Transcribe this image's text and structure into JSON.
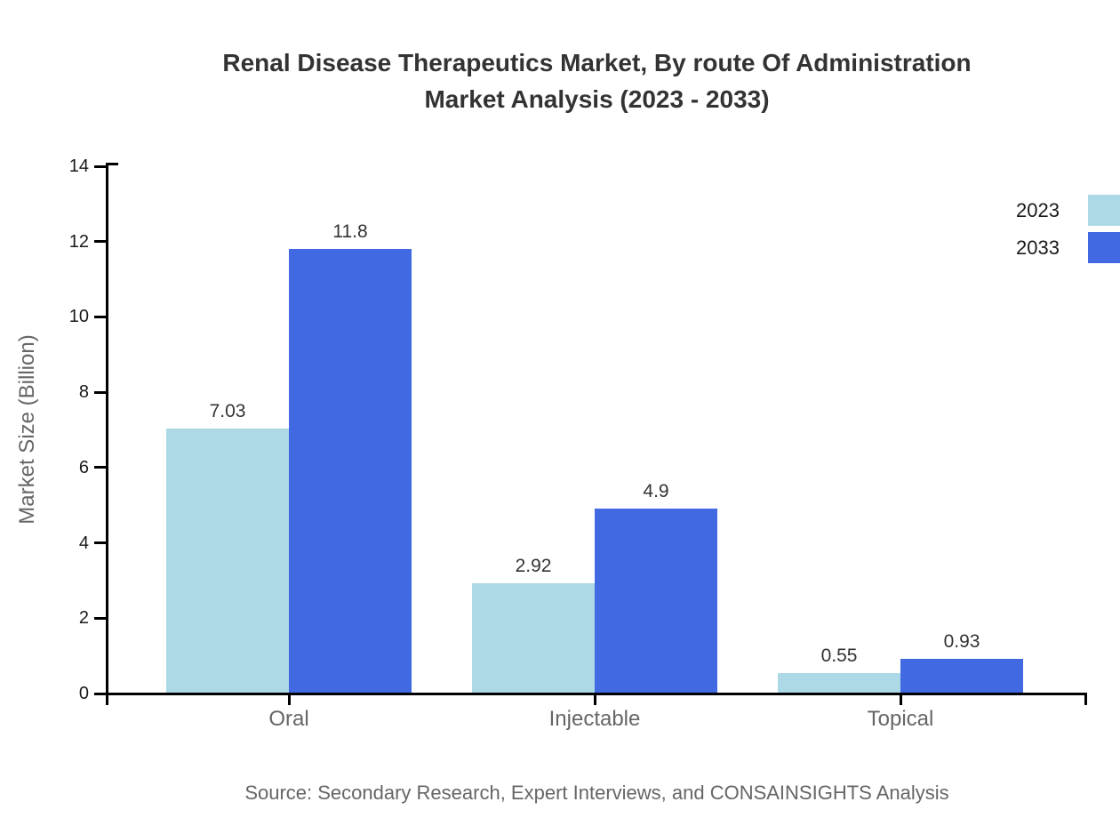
{
  "title": {
    "lines": [
      "Renal Disease Therapeutics Market, By route Of Administration",
      "Market Analysis (2023 - 2033)"
    ]
  },
  "source": "Source: Secondary Research, Expert Interviews, and CONSAINSIGHTS Analysis",
  "chart_data": {
    "type": "bar",
    "categories": [
      "Oral",
      "Injectable",
      "Topical"
    ],
    "series": [
      {
        "name": "2023",
        "color": "#ADD8E6",
        "values": [
          7.03,
          2.92,
          0.55
        ]
      },
      {
        "name": "2033",
        "color": "#4169E1",
        "values": [
          11.8,
          4.9,
          0.93
        ]
      }
    ],
    "ylabel": "Market Size (Billion)",
    "xlabel": "",
    "ylim": [
      0,
      14
    ],
    "yticks": [
      0,
      2,
      4,
      6,
      8,
      10,
      12,
      14
    ],
    "grid": false,
    "legend_position": "top-right",
    "value_labels_shown": true
  }
}
